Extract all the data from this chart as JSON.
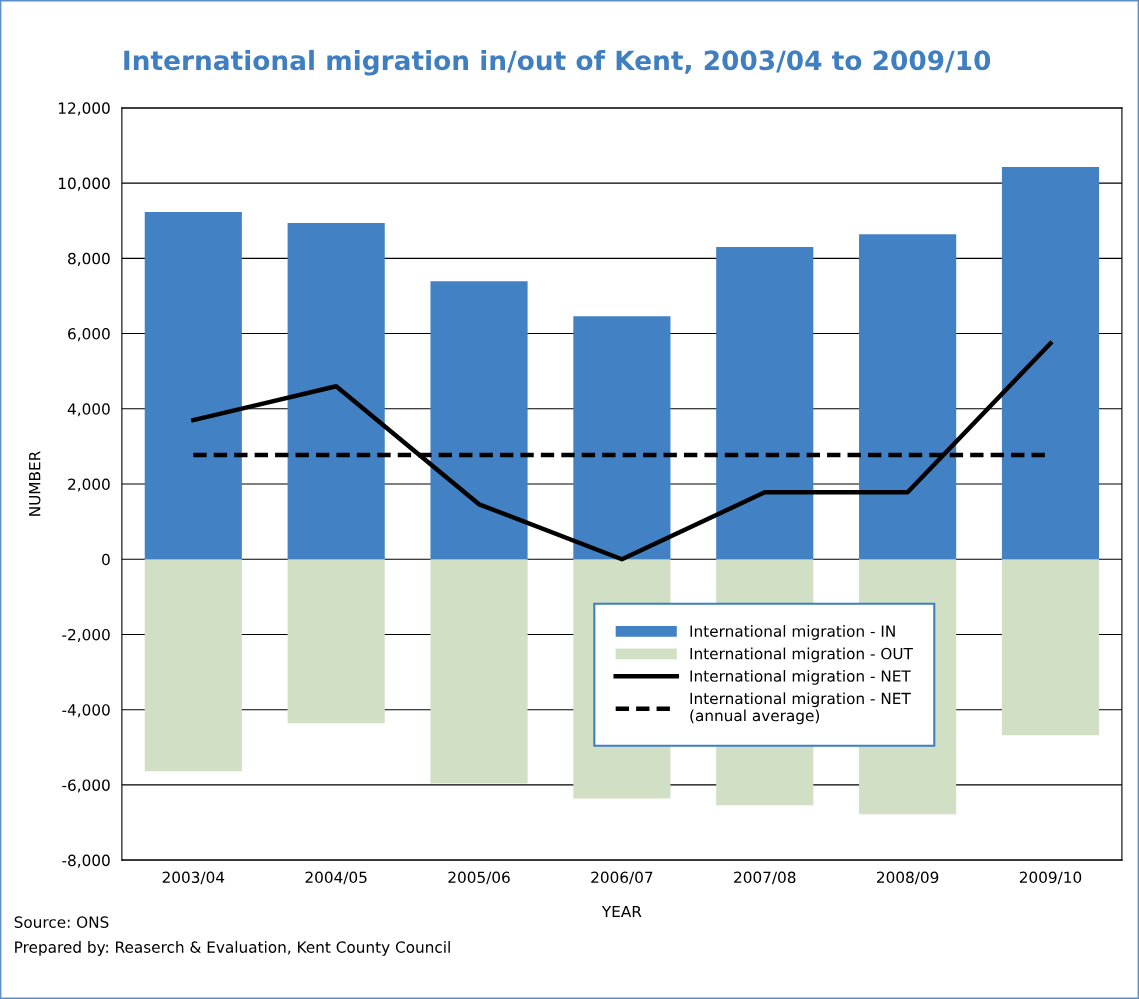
{
  "chart_data": {
    "type": "bar",
    "title": "International migration in/out of Kent, 2003/04 to 2009/10",
    "xlabel": "YEAR",
    "ylabel": "NUMBER",
    "categories": [
      "2003/04",
      "2004/05",
      "2005/06",
      "2006/07",
      "2007/08",
      "2008/09",
      "2009/10"
    ],
    "stacked": true,
    "series": [
      {
        "name": "International migration - IN",
        "color": "#4282c4",
        "values": [
          9230,
          8940,
          7390,
          6460,
          8300,
          8640,
          10430
        ]
      },
      {
        "name": "International migration - OUT",
        "color": "#d1dfc4",
        "values": [
          -5640,
          -4360,
          -5960,
          -6360,
          -6540,
          -6780,
          -4680
        ]
      },
      {
        "name": "International migration - NET",
        "type": "line",
        "color": "#000000",
        "line_style": "solid",
        "values": [
          3700,
          4600,
          1460,
          0,
          1780,
          1780,
          5740
        ]
      },
      {
        "name": "International migration - NET\n(annual average)",
        "type": "line",
        "color": "#000000",
        "line_style": "dashed",
        "values": [
          2770,
          2770,
          2770,
          2770,
          2770,
          2770,
          2770
        ]
      }
    ],
    "ylim": [
      -8000,
      12000
    ],
    "yticks": [
      {
        "value": -8000,
        "label": "-8,000"
      },
      {
        "value": -6000,
        "label": "-6,000"
      },
      {
        "value": -4000,
        "label": "-4,000"
      },
      {
        "value": -2000,
        "label": "-2,000"
      },
      0,
      {
        "value": 2000,
        "label": "2,000"
      },
      {
        "value": 4000,
        "label": "4,000"
      },
      {
        "value": 6000,
        "label": "6,000"
      },
      {
        "value": 8000,
        "label": "8,000"
      },
      {
        "value": 10000,
        "label": "10,000"
      },
      {
        "value": 12000,
        "label": "12,000"
      }
    ],
    "grid": "y",
    "legend": "bottom right",
    "annotations": [
      "Source: ONS",
      "Prepared by: Reaserch & Evaluation, Kent County Council"
    ]
  }
}
